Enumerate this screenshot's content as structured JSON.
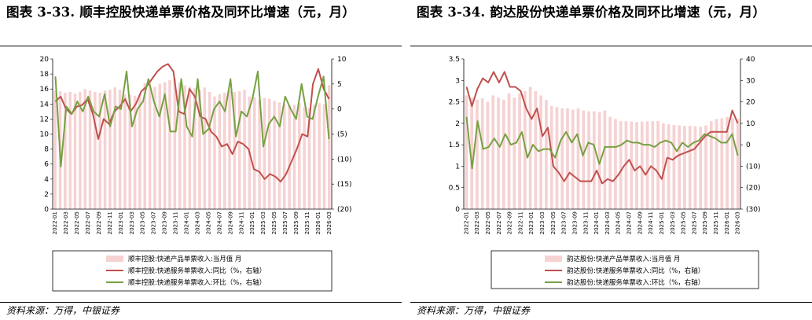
{
  "charts": [
    {
      "title": "图表 3-33. 顺丰控股快递单票价格及同环比增速（元，月）",
      "source": "资料来源：万得，中银证券"
    },
    {
      "title": "图表 3-34. 韵达股份快递单票价格及同环比增速（元，月）",
      "source": "资料来源：万得，中银证券"
    }
  ],
  "colors": {
    "bar": "#f6d2d2",
    "yoy": "#c0504d",
    "mom": "#77a043"
  },
  "chart_data": [
    {
      "type": "bar",
      "x_tick_labels": [
        "2022-01",
        "2022-03",
        "2022-05",
        "2022-07",
        "2022-09",
        "2022-11",
        "2023-01",
        "2023-03",
        "2023-05",
        "2023-07",
        "2023-09",
        "2023-11",
        "2024-01",
        "2024-03",
        "2024-05",
        "2024-07",
        "2024-09",
        "2024-11",
        "2025-01",
        "2025-03",
        "2025-05",
        "2025-07",
        "2025-09",
        "2025-11",
        "2026-01",
        "2026-03"
      ],
      "left_axis": {
        "range": [
          0,
          20
        ],
        "ticks": [
          "0",
          "2",
          "4",
          "6",
          "8",
          "10",
          "12",
          "14",
          "16",
          "18",
          "20"
        ]
      },
      "right_axis": {
        "range": [
          -20,
          10
        ],
        "ticks": [
          "(20)",
          "(15)",
          "(10)",
          "(5)",
          "0",
          "5",
          "10"
        ],
        "ticks_red": [
          "(20)",
          "(15)",
          "(10)",
          "(5)"
        ]
      },
      "legend": {
        "position": "bottom"
      },
      "series": [
        {
          "name": "顺丰控股:快递产品单票收入:当月值 月",
          "type": "bar",
          "axis": "left",
          "values": [
            15.8,
            15.7,
            15.5,
            15.6,
            15.4,
            15.6,
            16.0,
            15.8,
            15.6,
            15.5,
            15.8,
            15.9,
            16.2,
            15.9,
            15.3,
            15.2,
            15.1,
            15.3,
            16.8,
            16.5,
            16.3,
            16.7,
            16.9,
            17.2,
            17.4,
            16.9,
            16.5,
            16.3,
            16.1,
            15.9,
            16.2,
            15.6,
            15.0,
            15.3,
            15.5,
            15.8,
            15.6,
            15.7,
            15.9,
            15.0,
            14.9,
            14.5,
            14.8,
            14.7,
            14.4,
            14.2,
            14.0,
            13.8,
            13.9,
            14.1,
            13.6,
            13.5,
            13.9,
            14.1,
            14.0,
            16.5
          ]
        },
        {
          "name": "顺丰控股:快递服务单票收入:同比（%，右轴）",
          "type": "line",
          "axis": "right",
          "values": [
            1.5,
            2.5,
            0.0,
            -1.0,
            0.5,
            0.8,
            2.0,
            -1.0,
            -6.0,
            -2.0,
            -3.0,
            -0.5,
            0.5,
            2.0,
            -0.5,
            1.0,
            3.5,
            4.5,
            6.0,
            7.5,
            8.5,
            9.0,
            7.5,
            -0.5,
            -1.0,
            4.0,
            2.5,
            -1.5,
            -2.0,
            -4.5,
            -5.5,
            -7.5,
            -7.0,
            -9.0,
            -6.5,
            -7.0,
            -8.0,
            -12.0,
            -12.5,
            -14.0,
            -13.0,
            -13.5,
            -14.5,
            -13.0,
            -10.5,
            -8.0,
            -5.0,
            -5.5,
            5.0,
            8.0,
            4.0,
            2.0
          ]
        },
        {
          "name": "顺丰控股:快递服务单票收入:环比（%，右轴）",
          "type": "line",
          "axis": "right",
          "values": [
            6.5,
            -11.5,
            0.5,
            -1.0,
            1.5,
            -0.5,
            2.5,
            -0.5,
            -1.5,
            3.0,
            -3.5,
            0.5,
            0.0,
            7.5,
            -3.5,
            0.0,
            1.5,
            6.0,
            1.5,
            -1.5,
            3.0,
            -4.5,
            -4.5,
            6.0,
            -3.5,
            -5.5,
            6.0,
            -5.0,
            -4.0,
            0.0,
            1.5,
            -0.5,
            6.0,
            -5.5,
            -0.5,
            -1.5,
            2.0,
            7.5,
            -7.5,
            -3.0,
            -1.5,
            -3.5,
            2.5,
            0.0,
            -2.0,
            5.0,
            -1.5,
            -2.0,
            2.5,
            6.5,
            -6.0
          ]
        }
      ]
    },
    {
      "type": "bar",
      "x_tick_labels": [
        "2022-01",
        "2022-03",
        "2022-05",
        "2022-07",
        "2022-09",
        "2022-11",
        "2023-01",
        "2023-03",
        "2023-05",
        "2023-07",
        "2023-09",
        "2023-11",
        "2024-01",
        "2024-03",
        "2024-05",
        "2024-07",
        "2024-09",
        "2024-11",
        "2025-01",
        "2025-03",
        "2025-05",
        "2025-07",
        "2025-09",
        "2025-11",
        "2026-01",
        "2026-03"
      ],
      "left_axis": {
        "range": [
          0,
          3.5
        ],
        "ticks": [
          "0",
          "0.5",
          "1",
          "1.5",
          "2",
          "2.5",
          "3",
          "3.5"
        ]
      },
      "right_axis": {
        "range": [
          -30,
          40
        ],
        "ticks": [
          "(30)",
          "(20)",
          "(10)",
          "0",
          "10",
          "20",
          "30",
          "40"
        ],
        "ticks_red": [
          "(30)",
          "(20)",
          "(10)"
        ]
      },
      "legend": {
        "position": "bottom"
      },
      "series": [
        {
          "name": "韵达股份:快递产品单票收入:当月值 月",
          "type": "bar",
          "axis": "left",
          "values": [
            2.65,
            2.6,
            2.55,
            2.58,
            2.5,
            2.65,
            2.6,
            2.55,
            2.7,
            2.6,
            2.7,
            2.75,
            2.85,
            2.75,
            2.65,
            2.55,
            2.4,
            2.38,
            2.35,
            2.35,
            2.32,
            2.35,
            2.3,
            2.28,
            2.28,
            2.26,
            2.3,
            2.15,
            2.1,
            2.05,
            2.05,
            2.04,
            2.03,
            2.04,
            2.05,
            2.05,
            2.05,
            2.0,
            1.98,
            1.96,
            1.95,
            1.94,
            1.94,
            1.93,
            1.92,
            1.95,
            2.05,
            2.1,
            2.12,
            2.15,
            2.13,
            2.1
          ]
        },
        {
          "name": "韵达股份:快递服务单票收入:同比（%，右轴）",
          "type": "line",
          "axis": "right",
          "values": [
            27,
            18,
            26,
            31,
            29,
            34,
            29,
            34,
            27,
            27,
            25,
            17,
            12,
            17,
            4,
            8,
            -10,
            -13,
            -17,
            -13,
            -15,
            -17,
            -17,
            -17,
            -12,
            -18,
            -16,
            -17,
            -14,
            -10,
            -7,
            -12,
            -10,
            -14,
            -10,
            -12,
            -16,
            -6,
            -7,
            -5,
            -4,
            -3,
            -2,
            1,
            4,
            6,
            6,
            6,
            6,
            16,
            10
          ]
        },
        {
          "name": "韵达股份:快递服务单票收入:环比（%，右轴）",
          "type": "line",
          "axis": "right",
          "values": [
            13,
            -11,
            11,
            -2,
            -1,
            3,
            -1,
            5,
            0,
            1,
            6,
            -6,
            0,
            -3,
            -2,
            -2,
            -6,
            2,
            6,
            1,
            5,
            -5,
            1,
            0,
            -9,
            -1,
            -1,
            -1,
            0,
            2,
            1,
            1,
            0,
            0,
            -1,
            1,
            2,
            1,
            -3,
            1,
            -1,
            1,
            2,
            5,
            4,
            3,
            1,
            1,
            5,
            -5
          ]
        }
      ]
    }
  ]
}
